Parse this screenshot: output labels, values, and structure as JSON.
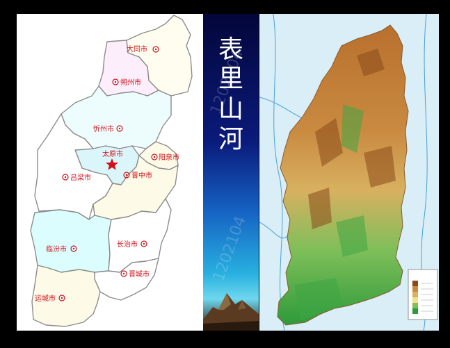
{
  "title_chars": [
    "表",
    "里",
    "山",
    "河"
  ],
  "watermark": "1202104",
  "cities": [
    {
      "name": "大同市",
      "icon": "city-marker-icon"
    },
    {
      "name": "朔州市",
      "icon": "city-marker-icon"
    },
    {
      "name": "忻州市",
      "icon": "city-marker-icon"
    },
    {
      "name": "太原市",
      "icon": "capital-star-icon"
    },
    {
      "name": "阳泉市",
      "icon": "city-marker-icon"
    },
    {
      "name": "吕梁市",
      "icon": "city-marker-icon"
    },
    {
      "name": "晋中市",
      "icon": "city-marker-icon"
    },
    {
      "name": "临汾市",
      "icon": "city-marker-icon"
    },
    {
      "name": "长治市",
      "icon": "city-marker-icon"
    },
    {
      "name": "晋城市",
      "icon": "city-marker-icon"
    },
    {
      "name": "运城市",
      "icon": "city-marker-icon"
    }
  ],
  "colors": {
    "label": "#d0101a",
    "border": "#8c8c8c",
    "capital": "#d0101a"
  }
}
